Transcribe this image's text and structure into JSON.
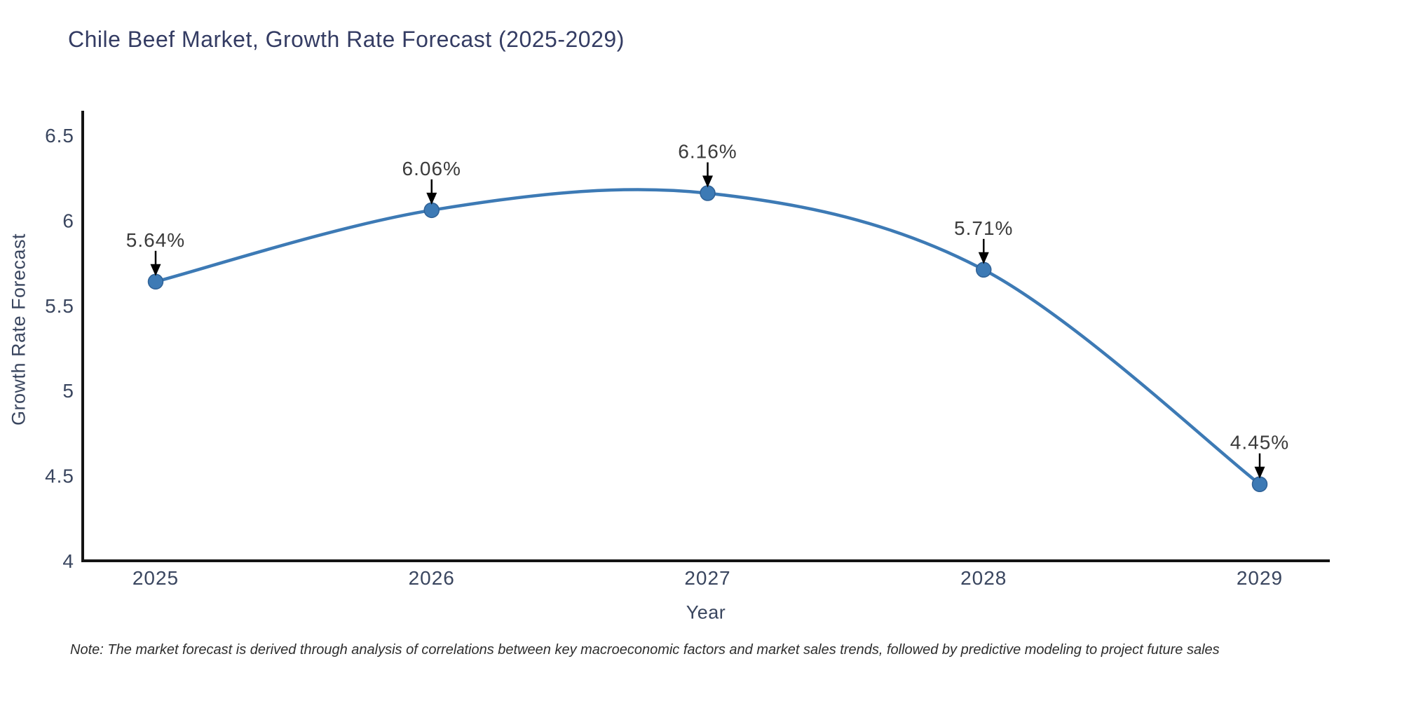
{
  "chart": {
    "title": "Chile Beef Market, Growth Rate Forecast (2025-2029)",
    "xlabel": "Year",
    "ylabel": "Growth Rate Forecast",
    "note": "Note: The market forecast is derived through analysis of correlations between key macroeconomic factors and market sales trends, followed by predictive modeling to project future sales"
  },
  "chart_data": {
    "type": "line",
    "title": "Chile Beef Market, Growth Rate Forecast (2025-2029)",
    "xlabel": "Year",
    "ylabel": "Growth Rate Forecast",
    "x": [
      2025,
      2026,
      2027,
      2028,
      2029
    ],
    "xticks": [
      "2025",
      "2026",
      "2027",
      "2028",
      "2029"
    ],
    "series": [
      {
        "name": "Growth Rate Forecast",
        "values": [
          5.64,
          6.06,
          6.16,
          5.71,
          4.45
        ]
      }
    ],
    "point_labels": [
      "5.64%",
      "6.06%",
      "6.16%",
      "5.71%",
      "4.45%"
    ],
    "ylim": [
      4,
      6.5
    ],
    "yticks": [
      "4",
      "4.5",
      "5",
      "5.5",
      "6",
      "6.5"
    ],
    "ytick_values": [
      4,
      4.5,
      5,
      5.5,
      6,
      6.5
    ],
    "grid": false,
    "legend_position": "none",
    "line_shape": "spline",
    "annotations": "black arrows pointing down from each percentage label to its data point",
    "colors": {
      "line": "#3d7ab5",
      "marker": "#3d7ab5",
      "marker_edge": "#2f6196",
      "axis": "#141414",
      "tick_text": "#3a465f",
      "title_text": "#343c63",
      "point_label_text": "#3b3b3b",
      "arrow": "#000000",
      "note_text": "#2e2e2e"
    }
  }
}
